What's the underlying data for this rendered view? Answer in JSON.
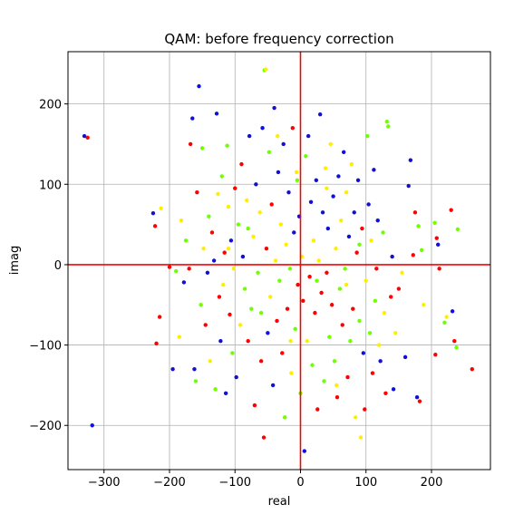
{
  "chart_data": {
    "type": "scatter",
    "title": "QAM: before frequency correction",
    "xlabel": "real",
    "ylabel": "imag",
    "xlim": [
      -355,
      290
    ],
    "ylim": [
      -255,
      265
    ],
    "x_ticks": [
      -300,
      -200,
      -100,
      0,
      100,
      200
    ],
    "y_ticks": [
      -200,
      -100,
      0,
      100,
      200
    ],
    "x_tick_labels": [
      "−300",
      "−200",
      "−100",
      "0",
      "100",
      "200"
    ],
    "y_tick_labels": [
      "−200",
      "−100",
      "0",
      "100",
      "200"
    ],
    "grid": true,
    "reference_lines": {
      "x": 0,
      "y": 0,
      "color": "#ff0000"
    },
    "marker_colors": [
      "#ff0000",
      "#1010d8",
      "#70ff00",
      "#ffee00"
    ],
    "points": [
      [
        -330,
        160,
        1
      ],
      [
        -325,
        158,
        0
      ],
      [
        -318,
        -200,
        1
      ],
      [
        -225,
        64,
        1
      ],
      [
        -222,
        48,
        0
      ],
      [
        -220,
        -98,
        0
      ],
      [
        -215,
        -65,
        0
      ],
      [
        -213,
        70,
        3
      ],
      [
        -200,
        -3,
        0
      ],
      [
        -195,
        -130,
        1
      ],
      [
        -190,
        -8,
        2
      ],
      [
        -185,
        -90,
        3
      ],
      [
        -182,
        55,
        3
      ],
      [
        -178,
        -22,
        1
      ],
      [
        -175,
        30,
        2
      ],
      [
        -170,
        -5,
        0
      ],
      [
        -168,
        150,
        0
      ],
      [
        -165,
        182,
        1
      ],
      [
        -162,
        -130,
        1
      ],
      [
        -160,
        -145,
        2
      ],
      [
        -158,
        90,
        0
      ],
      [
        -155,
        222,
        1
      ],
      [
        -152,
        -50,
        2
      ],
      [
        -150,
        145,
        2
      ],
      [
        -148,
        20,
        3
      ],
      [
        -145,
        -75,
        0
      ],
      [
        -142,
        -10,
        1
      ],
      [
        -140,
        60,
        2
      ],
      [
        -138,
        -120,
        3
      ],
      [
        -135,
        40,
        0
      ],
      [
        -132,
        5,
        1
      ],
      [
        -130,
        -155,
        2
      ],
      [
        -128,
        188,
        1
      ],
      [
        -126,
        88,
        3
      ],
      [
        -124,
        -40,
        0
      ],
      [
        -122,
        -95,
        1
      ],
      [
        -120,
        110,
        2
      ],
      [
        -118,
        -25,
        3
      ],
      [
        -116,
        15,
        0
      ],
      [
        -114,
        -160,
        1
      ],
      [
        -112,
        148,
        2
      ],
      [
        -110,
        72,
        3
      ],
      [
        -108,
        -62,
        0
      ],
      [
        -106,
        30,
        1
      ],
      [
        -104,
        -110,
        2
      ],
      [
        -102,
        -5,
        3
      ],
      [
        -100,
        95,
        0
      ],
      [
        -98,
        -140,
        1
      ],
      [
        -95,
        50,
        2
      ],
      [
        -92,
        -75,
        3
      ],
      [
        -90,
        125,
        0
      ],
      [
        -88,
        10,
        1
      ],
      [
        -85,
        -30,
        2
      ],
      [
        -82,
        80,
        3
      ],
      [
        -80,
        -95,
        0
      ],
      [
        -78,
        160,
        1
      ],
      [
        -75,
        -55,
        2
      ],
      [
        -72,
        35,
        3
      ],
      [
        -70,
        -175,
        0
      ],
      [
        -68,
        100,
        1
      ],
      [
        -65,
        -10,
        2
      ],
      [
        -62,
        65,
        3
      ],
      [
        -60,
        -120,
        0
      ],
      [
        -58,
        170,
        1
      ],
      [
        -56,
        -215,
        0
      ],
      [
        -55,
        242,
        2
      ],
      [
        -53,
        243,
        3
      ],
      [
        -52,
        20,
        0
      ],
      [
        -50,
        -85,
        1
      ],
      [
        -48,
        140,
        2
      ],
      [
        -46,
        -40,
        3
      ],
      [
        -44,
        75,
        0
      ],
      [
        -42,
        -150,
        1
      ],
      [
        -40,
        195,
        1
      ],
      [
        -38,
        5,
        3
      ],
      [
        -36,
        -70,
        0
      ],
      [
        -34,
        115,
        1
      ],
      [
        -32,
        -20,
        2
      ],
      [
        -30,
        50,
        3
      ],
      [
        -28,
        -110,
        0
      ],
      [
        -26,
        150,
        1
      ],
      [
        -24,
        -190,
        2
      ],
      [
        -22,
        25,
        3
      ],
      [
        -20,
        -55,
        0
      ],
      [
        -18,
        90,
        1
      ],
      [
        -16,
        -5,
        2
      ],
      [
        -14,
        -135,
        3
      ],
      [
        -12,
        170,
        0
      ],
      [
        -10,
        40,
        1
      ],
      [
        -8,
        -80,
        2
      ],
      [
        -6,
        115,
        3
      ],
      [
        -4,
        -25,
        0
      ],
      [
        -2,
        60,
        1
      ],
      [
        0,
        -160,
        2
      ],
      [
        2,
        10,
        3
      ],
      [
        4,
        -45,
        0
      ],
      [
        6,
        -232,
        1
      ],
      [
        8,
        135,
        2
      ],
      [
        10,
        -95,
        3
      ],
      [
        12,
        160,
        1
      ],
      [
        14,
        -15,
        0
      ],
      [
        16,
        78,
        1
      ],
      [
        18,
        -125,
        2
      ],
      [
        20,
        30,
        3
      ],
      [
        22,
        -60,
        0
      ],
      [
        24,
        105,
        1
      ],
      [
        26,
        -180,
        0
      ],
      [
        28,
        5,
        3
      ],
      [
        30,
        187,
        1
      ],
      [
        32,
        -35,
        0
      ],
      [
        34,
        65,
        1
      ],
      [
        36,
        -145,
        2
      ],
      [
        38,
        120,
        3
      ],
      [
        40,
        -10,
        0
      ],
      [
        42,
        45,
        1
      ],
      [
        44,
        -90,
        2
      ],
      [
        46,
        150,
        3
      ],
      [
        48,
        -50,
        0
      ],
      [
        50,
        85,
        1
      ],
      [
        52,
        -120,
        2
      ],
      [
        54,
        20,
        3
      ],
      [
        56,
        -165,
        0
      ],
      [
        58,
        110,
        1
      ],
      [
        60,
        -30,
        2
      ],
      [
        62,
        55,
        3
      ],
      [
        64,
        -75,
        0
      ],
      [
        66,
        140,
        1
      ],
      [
        68,
        -5,
        2
      ],
      [
        70,
        90,
        3
      ],
      [
        72,
        -140,
        0
      ],
      [
        74,
        35,
        1
      ],
      [
        76,
        -95,
        2
      ],
      [
        78,
        125,
        3
      ],
      [
        80,
        -55,
        0
      ],
      [
        82,
        65,
        1
      ],
      [
        84,
        -190,
        3
      ],
      [
        86,
        15,
        0
      ],
      [
        88,
        105,
        1
      ],
      [
        90,
        -70,
        2
      ],
      [
        92,
        -215,
        3
      ],
      [
        94,
        45,
        0
      ],
      [
        96,
        -110,
        1
      ],
      [
        98,
        -180,
        0
      ],
      [
        100,
        -20,
        3
      ],
      [
        102,
        160,
        2
      ],
      [
        104,
        75,
        1
      ],
      [
        106,
        -85,
        2
      ],
      [
        108,
        30,
        3
      ],
      [
        110,
        -135,
        0
      ],
      [
        112,
        118,
        1
      ],
      [
        114,
        -45,
        2
      ],
      [
        116,
        -5,
        0
      ],
      [
        118,
        55,
        1
      ],
      [
        120,
        -100,
        3
      ],
      [
        122,
        -120,
        1
      ],
      [
        126,
        40,
        2
      ],
      [
        128,
        -60,
        3
      ],
      [
        130,
        -160,
        0
      ],
      [
        132,
        178,
        2
      ],
      [
        134,
        172,
        2
      ],
      [
        138,
        -40,
        0
      ],
      [
        140,
        10,
        1
      ],
      [
        142,
        -155,
        1
      ],
      [
        145,
        -85,
        3
      ],
      [
        150,
        -30,
        0
      ],
      [
        155,
        -10,
        3
      ],
      [
        160,
        -115,
        1
      ],
      [
        165,
        98,
        1
      ],
      [
        168,
        130,
        1
      ],
      [
        172,
        12,
        0
      ],
      [
        175,
        65,
        0
      ],
      [
        178,
        -165,
        1
      ],
      [
        180,
        48,
        2
      ],
      [
        182,
        -170,
        0
      ],
      [
        185,
        18,
        2
      ],
      [
        188,
        -50,
        3
      ],
      [
        205,
        52,
        2
      ],
      [
        206,
        -112,
        0
      ],
      [
        208,
        33,
        0
      ],
      [
        210,
        25,
        1
      ],
      [
        212,
        -5,
        0
      ],
      [
        220,
        -72,
        2
      ],
      [
        223,
        -65,
        3
      ],
      [
        230,
        68,
        0
      ],
      [
        232,
        -58,
        1
      ],
      [
        235,
        -95,
        0
      ],
      [
        238,
        -103,
        2
      ],
      [
        240,
        44,
        2
      ],
      [
        262,
        -130,
        0
      ],
      [
        -110,
        20,
        3
      ],
      [
        -60,
        -60,
        2
      ],
      [
        40,
        95,
        3
      ],
      [
        -15,
        -95,
        3
      ],
      [
        70,
        -25,
        3
      ],
      [
        -80,
        45,
        2
      ],
      [
        25,
        -20,
        2
      ],
      [
        -35,
        160,
        3
      ],
      [
        55,
        -150,
        3
      ],
      [
        -5,
        105,
        2
      ],
      [
        90,
        25,
        2
      ]
    ]
  }
}
